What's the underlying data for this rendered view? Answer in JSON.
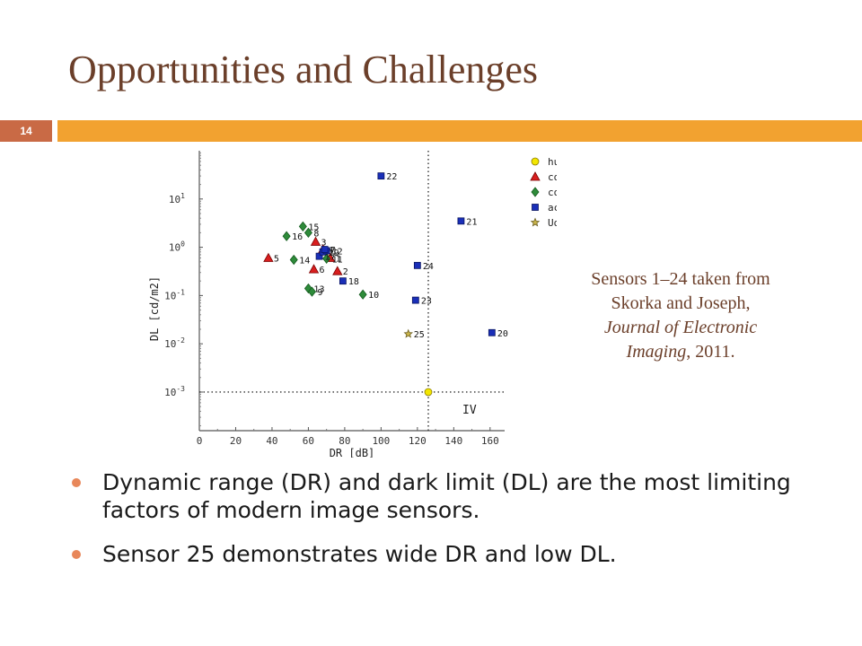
{
  "slide": {
    "title": "Opportunities and Challenges",
    "page_number": "14"
  },
  "caption": {
    "line1": "Sensors 1–24 taken from",
    "line2": "Skorka and Joseph,",
    "journal": "Journal of Electronic",
    "journal2": "Imaging",
    "year_suffix": ", 2011."
  },
  "bullets": [
    "Dynamic range (DR) and dark limit (DL) are the most limiting factors of modern image sensors.",
    "Sensor 25 demonstrates wide DR and low DL."
  ],
  "colors": {
    "title": "#6b3f2a",
    "accent_bar": "#f2a230",
    "page_box": "#c96a45",
    "bullet_dot": "#e8875a"
  },
  "chart_data": {
    "type": "scatter",
    "xlabel": "DR [dB]",
    "ylabel": "DL [cd/m2]",
    "xlim": [
      0,
      168
    ],
    "ylim_log10": [
      -3.8,
      2.0
    ],
    "y_scale": "log",
    "x_ticks": [
      0,
      20,
      40,
      60,
      80,
      100,
      120,
      140,
      160
    ],
    "y_ticks": [
      {
        "exp": 1,
        "label": "10",
        "sup": "1"
      },
      {
        "exp": 0,
        "label": "10",
        "sup": "0"
      },
      {
        "exp": -1,
        "label": "10",
        "sup": "-1"
      },
      {
        "exp": -2,
        "label": "10",
        "sup": "-2"
      },
      {
        "exp": -3,
        "label": "10",
        "sup": "-3"
      }
    ],
    "region_label": "IV",
    "reference_lines": {
      "x": 126,
      "y": 0.001
    },
    "legend": [
      {
        "marker": "circle",
        "color": "#f2e600",
        "stroke": "#8a7a00",
        "label": "human eye"
      },
      {
        "marker": "triangle",
        "color": "#d81e1e",
        "stroke": "#7a0000",
        "label": "commercial CCD"
      },
      {
        "marker": "diamond",
        "color": "#2e8b3a",
        "stroke": "#145a1e",
        "label": "commercial CMOS"
      },
      {
        "marker": "square",
        "color": "#1a2fb8",
        "stroke": "#0a1560",
        "label": "academic (VI) CMOS"
      },
      {
        "marker": "star",
        "color": "#c9b44a",
        "stroke": "#6b5e20",
        "label": "UofA VI-CMOS"
      }
    ],
    "series": [
      {
        "name": "human eye",
        "marker": "circle",
        "points": [
          {
            "x": 126,
            "y": 0.001,
            "label": ""
          }
        ]
      },
      {
        "name": "commercial CCD",
        "marker": "triangle",
        "points": [
          {
            "x": 38,
            "y": 0.6,
            "label": "5"
          },
          {
            "x": 63,
            "y": 0.35,
            "label": "6"
          },
          {
            "x": 64,
            "y": 1.3,
            "label": "3"
          },
          {
            "x": 68,
            "y": 0.9,
            "label": "4"
          },
          {
            "x": 72,
            "y": 0.6,
            "label": "1"
          },
          {
            "x": 76,
            "y": 0.32,
            "label": "2"
          }
        ]
      },
      {
        "name": "commercial CMOS",
        "marker": "diamond",
        "points": [
          {
            "x": 48,
            "y": 1.7,
            "label": "16"
          },
          {
            "x": 57,
            "y": 2.7,
            "label": "15"
          },
          {
            "x": 60,
            "y": 2.0,
            "label": "8"
          },
          {
            "x": 52,
            "y": 0.55,
            "label": "14"
          },
          {
            "x": 60,
            "y": 0.14,
            "label": "13"
          },
          {
            "x": 62,
            "y": 0.12,
            "label": "9"
          },
          {
            "x": 90,
            "y": 0.105,
            "label": "10"
          },
          {
            "x": 70,
            "y": 0.58,
            "label": "11"
          }
        ]
      },
      {
        "name": "academic (VI) CMOS",
        "marker": "square",
        "points": [
          {
            "x": 100,
            "y": 30,
            "label": "22"
          },
          {
            "x": 144,
            "y": 3.5,
            "label": "21"
          },
          {
            "x": 120,
            "y": 0.42,
            "label": "24"
          },
          {
            "x": 119,
            "y": 0.08,
            "label": "23"
          },
          {
            "x": 161,
            "y": 0.017,
            "label": "20"
          },
          {
            "x": 79,
            "y": 0.2,
            "label": "18"
          },
          {
            "x": 66,
            "y": 0.65,
            "label": "17"
          },
          {
            "x": 68,
            "y": 0.8,
            "label": "19"
          },
          {
            "x": 70,
            "y": 0.85,
            "label": "12"
          },
          {
            "x": 69,
            "y": 0.9,
            "label": "7"
          }
        ]
      },
      {
        "name": "UofA VI-CMOS",
        "marker": "star",
        "points": [
          {
            "x": 115,
            "y": 0.016,
            "label": "25"
          }
        ]
      }
    ]
  }
}
